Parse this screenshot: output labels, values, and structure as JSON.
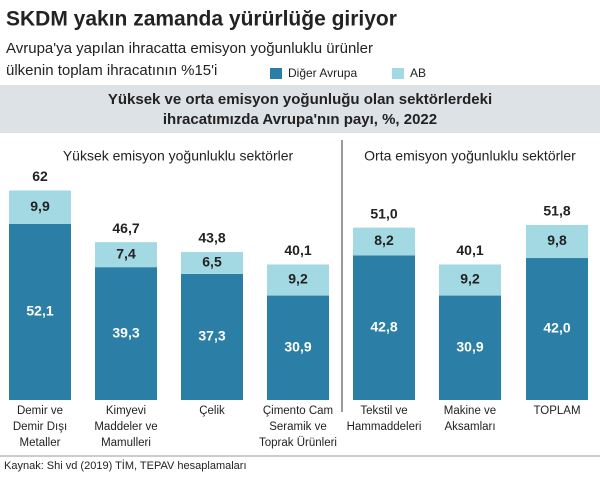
{
  "chart_data": {
    "type": "stacked-bar",
    "title": "SKDM yakın zamanda yürürlüğe giriyor",
    "subtitle": [
      "Avrupa'ya yapılan ihracatta emisyon yoğunluklu ürünler",
      "ülkenin toplam ihracatının %15'i"
    ],
    "chart_title": [
      "Yüksek ve orta emisyon yoğunluğu olan sektörlerdeki",
      "ihracatımızda Avrupa'nın payı, %, 2022"
    ],
    "groups": [
      "Yüksek emisyon yoğunluklu sektörler",
      "Orta emisyon yoğunluklu sektörler"
    ],
    "categories": [
      [
        "Demir ve",
        "Demir Dışı",
        "Metaller"
      ],
      [
        "Kimyevi",
        "Maddeler ve",
        "Mamulleri"
      ],
      [
        "Çelik"
      ],
      [
        "Çimento Cam",
        "Seramik ve",
        "Toprak Ürünleri"
      ],
      [
        "Tekstil ve",
        "Hammaddeleri"
      ],
      [
        "Makine ve",
        "Aksamları"
      ],
      [
        "TOPLAM"
      ]
    ],
    "series": [
      {
        "name": "Diğer Avrupa",
        "color": "#2b7fa6",
        "values": [
          52.1,
          39.3,
          37.3,
          30.9,
          42.8,
          30.9,
          42.0
        ],
        "value_labels": [
          "52,1",
          "39,3",
          "37,3",
          "30,9",
          "42,8",
          "30,9",
          "42,0"
        ]
      },
      {
        "name": "AB",
        "color": "#a3d9e3",
        "values": [
          9.9,
          7.4,
          6.5,
          9.2,
          8.2,
          9.2,
          9.8
        ],
        "value_labels": [
          "9,9",
          "7,4",
          "6,5",
          "9,2",
          "8,2",
          "9,2",
          "9,8"
        ]
      }
    ],
    "totals": [
      62,
      46.7,
      43.8,
      40.1,
      51.0,
      40.1,
      51.8
    ],
    "total_labels": [
      "62",
      "46,7",
      "43,8",
      "40,1",
      "51,0",
      "40,1",
      "51,8"
    ],
    "source": "Kaynak: Shi vd (2019) TİM, TEPAV hesaplamaları"
  }
}
